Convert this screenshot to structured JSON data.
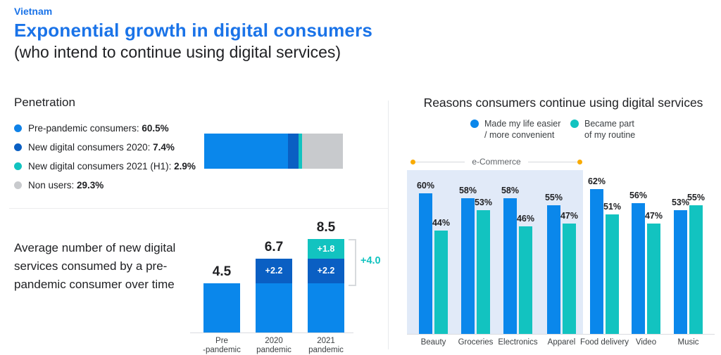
{
  "header": {
    "region": "Vietnam",
    "title": "Exponential growth in digital consumers",
    "subtitle": "(who intend to continue using digital services)"
  },
  "colors": {
    "accent_blue": "#1a73e8",
    "bar_blue": "#0a87eb",
    "bar_dark_blue": "#0a5fc3",
    "bar_teal": "#12c3c0",
    "bar_gray": "#c8cacd",
    "ecommerce_box": "#e1eaf8",
    "ecommerce_dot": "#f9ab00"
  },
  "penetration": {
    "heading": "Penetration",
    "legend": [
      {
        "label": "Pre-pandemic consumers:",
        "value": "60.5%",
        "color": "#0f82e8"
      },
      {
        "label": "New digital consumers 2020:",
        "value": "7.4%",
        "color": "#0a5fc3"
      },
      {
        "label": "New digital consumers 2021 (H1):",
        "value": "2.9%",
        "color": "#12c3c0"
      },
      {
        "label": "Non users:",
        "value": "29.3%",
        "color": "#c8cacd"
      }
    ]
  },
  "avg_services": {
    "description": "Average number of new digital services consumed by a pre-pandemic consumer over time"
  },
  "reasons": {
    "heading": "Reasons consumers continue using digital services",
    "legend": [
      {
        "line1": "Made my life easier",
        "line2": "/ more convenient",
        "color": "#0a87eb"
      },
      {
        "line1": "Became part",
        "line2": "of my routine",
        "color": "#12c3c0"
      }
    ],
    "group_label": "e-Commerce"
  },
  "chart_data": [
    {
      "type": "bar",
      "subtype": "stacked-horizontal",
      "title": "Penetration",
      "unit": "%",
      "segments": [
        {
          "label": "Pre-pandemic consumers",
          "value": 60.5,
          "color": "#0a87eb"
        },
        {
          "label": "New digital consumers 2020",
          "value": 7.4,
          "color": "#0a5fc3"
        },
        {
          "label": "New digital consumers 2021 (H1)",
          "value": 2.9,
          "color": "#12c3c0"
        },
        {
          "label": "Non users",
          "value": 29.3,
          "color": "#c8cacd"
        }
      ]
    },
    {
      "type": "bar",
      "subtype": "stacked-column",
      "title": "Average number of new digital services consumed by a pre-pandemic consumer over time",
      "categories": [
        [
          "Pre",
          "-pandemic"
        ],
        [
          "2020",
          "pandemic"
        ],
        [
          "2021",
          "pandemic"
        ]
      ],
      "totals": [
        "4.5",
        "6.7",
        "8.5"
      ],
      "bars": [
        {
          "segments": [
            {
              "value": 4.5,
              "color": "#0a87eb",
              "label": ""
            }
          ]
        },
        {
          "segments": [
            {
              "value": 4.5,
              "color": "#0a87eb",
              "label": ""
            },
            {
              "value": 2.2,
              "color": "#0a5fc3",
              "label": "+2.2"
            }
          ]
        },
        {
          "segments": [
            {
              "value": 4.5,
              "color": "#0a87eb",
              "label": ""
            },
            {
              "value": 2.2,
              "color": "#0a5fc3",
              "label": "+2.2"
            },
            {
              "value": 1.8,
              "color": "#12c3c0",
              "label": "+1.8"
            }
          ]
        }
      ],
      "annotation": {
        "text": "+4.0",
        "color": "#12c3c0",
        "bar_index": 2,
        "covers_from_segment": 1
      }
    },
    {
      "type": "bar",
      "subtype": "grouped-column",
      "title": "Reasons consumers continue using digital services",
      "unit": "%",
      "ylim": [
        0,
        70
      ],
      "series": [
        {
          "name": "Made my life easier / more convenient",
          "color": "#0a87eb"
        },
        {
          "name": "Became part of my routine",
          "color": "#12c3c0"
        }
      ],
      "categories": [
        "Beauty",
        "Groceries",
        "Electronics",
        "Apparel",
        "Food delivery",
        "Video",
        "Music"
      ],
      "values": [
        [
          60,
          58,
          58,
          55,
          62,
          56,
          53
        ],
        [
          44,
          53,
          46,
          47,
          51,
          47,
          55
        ]
      ],
      "group_annotation": {
        "text": "e-Commerce",
        "covers": [
          "Beauty",
          "Groceries",
          "Electronics",
          "Apparel"
        ]
      }
    }
  ]
}
